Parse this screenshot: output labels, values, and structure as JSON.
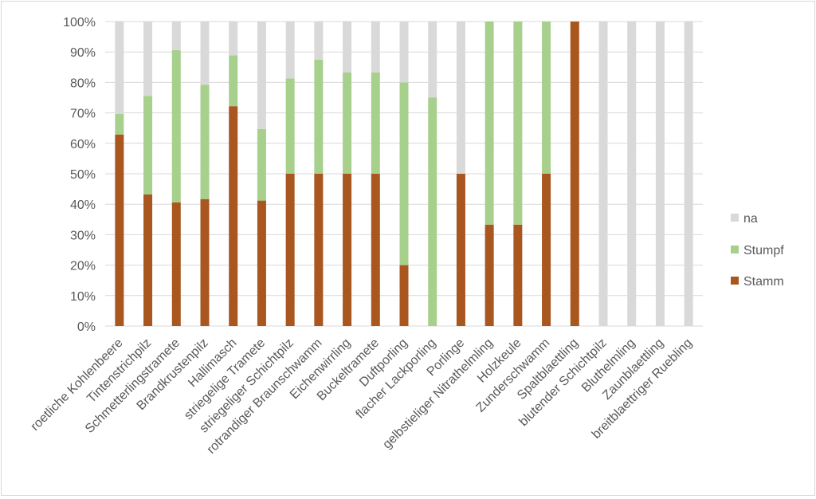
{
  "chart_data": {
    "type": "bar",
    "stacked": true,
    "percent": true,
    "categories": [
      "roetliche Kohlenbeere",
      "Tintenstrichpilz",
      "Schmetterlingstramete",
      "Brandkrustenpilz",
      "Hallimasch",
      "striegelige Tramete",
      "striegeliger Schichtpilz",
      "rotrandiger Braunschwamm",
      "Eichenwirrling",
      "Buckeltramete",
      "Duftporling",
      "flacher Lackporling",
      "Porlinge",
      "gelbstieliger Nitrathelmling",
      "Holzkeule",
      "Zunderschwamm",
      "Spaltblaettling",
      "blutender Schichtpilz",
      "Bluthelmling",
      "Zaunblaettling",
      "breitblaettriger Ruebling"
    ],
    "series": [
      {
        "name": "Stamm",
        "color": "#a9561f",
        "values": [
          62.9,
          43.2,
          40.6,
          41.7,
          72.2,
          41.2,
          50.0,
          50.0,
          50.0,
          50.0,
          20.0,
          0.0,
          50.0,
          33.3,
          33.3,
          50.0,
          100.0,
          0.0,
          0.0,
          0.0,
          0.0
        ]
      },
      {
        "name": "Stumpf",
        "color": "#a8d08d",
        "values": [
          6.8,
          32.4,
          50.0,
          37.5,
          16.7,
          23.5,
          31.3,
          37.5,
          33.3,
          33.3,
          60.0,
          75.0,
          0.0,
          66.7,
          66.7,
          50.0,
          0.0,
          0.0,
          0.0,
          0.0,
          0.0
        ]
      },
      {
        "name": "na",
        "color": "#d9d9d9",
        "values": [
          30.3,
          24.4,
          9.4,
          20.8,
          11.1,
          35.3,
          18.7,
          12.5,
          16.7,
          16.7,
          20.0,
          25.0,
          50.0,
          0.0,
          0.0,
          0.0,
          0.0,
          100.0,
          100.0,
          100.0,
          100.0
        ]
      }
    ],
    "yticks": [
      "0%",
      "10%",
      "20%",
      "30%",
      "40%",
      "50%",
      "60%",
      "70%",
      "80%",
      "90%",
      "100%"
    ],
    "ylim": [
      0,
      100
    ],
    "grid": true,
    "legend": {
      "placement": "right",
      "order": [
        "na",
        "Stumpf",
        "Stamm"
      ]
    },
    "title": "",
    "xlabel": "",
    "ylabel": ""
  }
}
